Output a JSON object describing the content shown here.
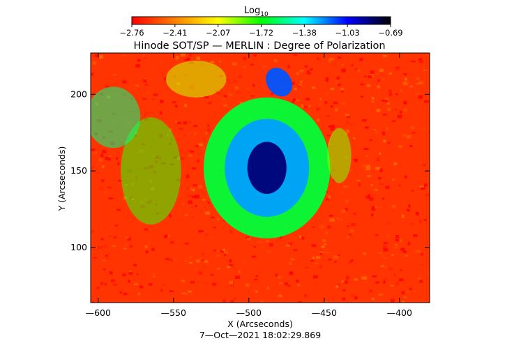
{
  "chart_data": {
    "type": "heatmap",
    "title": "Hinode SOT/SP — MERLIN : Degree of Polarization",
    "xlabel": "X (Arcseconds)",
    "ylabel": "Y (Arcseconds)",
    "timestamp": "7—Oct—2021 18:02:29.869",
    "xlim": [
      -605,
      -380
    ],
    "ylim": [
      64,
      227
    ],
    "x_ticks": [
      {
        "value": -600,
        "label": "—600"
      },
      {
        "value": -550,
        "label": "—550"
      },
      {
        "value": -500,
        "label": "—500"
      },
      {
        "value": -450,
        "label": "—450"
      },
      {
        "value": -400,
        "label": "—400"
      }
    ],
    "y_ticks": [
      {
        "value": 100,
        "label": "100"
      },
      {
        "value": 150,
        "label": "150"
      },
      {
        "value": 200,
        "label": "200"
      }
    ],
    "colorbar": {
      "title": "Log",
      "title_sub": "10",
      "range": [
        -2.76,
        -0.69
      ],
      "tick_labels": [
        "−2.76",
        "−2.41",
        "−2.07",
        "−1.72",
        "−1.38",
        "−1.03",
        "−0.69"
      ],
      "colors": [
        "#ff0000",
        "#ff8000",
        "#ffff00",
        "#00ff00",
        "#00ffff",
        "#0000ff",
        "#000000"
      ]
    },
    "features": [
      {
        "kind": "umbra",
        "x": -488,
        "y": 152,
        "rx": 13,
        "ry": 17,
        "value": -0.85
      },
      {
        "kind": "penumbra",
        "x": -488,
        "y": 152,
        "rx": 28,
        "ry": 32,
        "value": -1.25
      },
      {
        "kind": "halo",
        "x": -488,
        "y": 152,
        "rx": 42,
        "ry": 46,
        "value": -1.65
      },
      {
        "kind": "plage",
        "x": -480,
        "y": 208,
        "rx": 8,
        "ry": 10,
        "value": -1.15
      },
      {
        "kind": "network",
        "x": -590,
        "y": 185,
        "rx": 18,
        "ry": 20,
        "value": -1.55
      },
      {
        "kind": "network",
        "x": -565,
        "y": 150,
        "rx": 20,
        "ry": 35,
        "value": -1.8
      },
      {
        "kind": "network",
        "x": -440,
        "y": 160,
        "rx": 8,
        "ry": 18,
        "value": -1.9
      },
      {
        "kind": "network",
        "x": -535,
        "y": 210,
        "rx": 20,
        "ry": 12,
        "value": -2.0
      }
    ],
    "background_value": -2.62
  }
}
